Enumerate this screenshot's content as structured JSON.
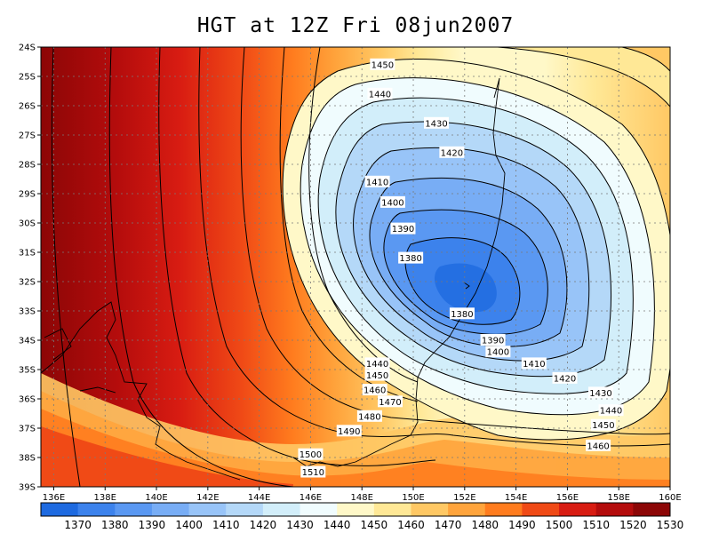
{
  "title": "HGT at 12Z Fri 08jun2007",
  "map": {
    "lon_range": [
      135.5,
      160
    ],
    "lat_range": [
      -39,
      -24
    ],
    "lon_ticks": [
      "136E",
      "138E",
      "140E",
      "142E",
      "144E",
      "146E",
      "148E",
      "150E",
      "152E",
      "154E",
      "156E",
      "158E",
      "160E"
    ],
    "lat_ticks": [
      "24S",
      "25S",
      "26S",
      "27S",
      "28S",
      "29S",
      "30S",
      "31S",
      "32S",
      "33S",
      "34S",
      "35S",
      "36S",
      "37S",
      "38S",
      "39S"
    ],
    "contour_labels": [
      {
        "text": "1450",
        "lon": 148.8,
        "lat": -24.6
      },
      {
        "text": "1440",
        "lon": 148.7,
        "lat": -25.6
      },
      {
        "text": "1430",
        "lon": 150.9,
        "lat": -26.6
      },
      {
        "text": "1420",
        "lon": 151.5,
        "lat": -27.6
      },
      {
        "text": "1410",
        "lon": 148.6,
        "lat": -28.6
      },
      {
        "text": "1400",
        "lon": 149.2,
        "lat": -29.3
      },
      {
        "text": "1390",
        "lon": 149.6,
        "lat": -30.2
      },
      {
        "text": "1380",
        "lon": 149.9,
        "lat": -31.2
      },
      {
        "text": "1380",
        "lon": 151.9,
        "lat": -33.1
      },
      {
        "text": "1390",
        "lon": 153.1,
        "lat": -34.0
      },
      {
        "text": "1400",
        "lon": 153.3,
        "lat": -34.4
      },
      {
        "text": "1410",
        "lon": 154.7,
        "lat": -34.8
      },
      {
        "text": "1420",
        "lon": 155.9,
        "lat": -35.3
      },
      {
        "text": "1430",
        "lon": 157.3,
        "lat": -35.8
      },
      {
        "text": "1440",
        "lon": 157.7,
        "lat": -36.4
      },
      {
        "text": "1450",
        "lon": 157.4,
        "lat": -36.9
      },
      {
        "text": "1460",
        "lon": 157.2,
        "lat": -37.6
      },
      {
        "text": "1440",
        "lon": 148.6,
        "lat": -34.8
      },
      {
        "text": "1450",
        "lon": 148.6,
        "lat": -35.2
      },
      {
        "text": "1460",
        "lon": 148.5,
        "lat": -35.7
      },
      {
        "text": "1470",
        "lon": 149.1,
        "lat": -36.1
      },
      {
        "text": "1480",
        "lon": 148.3,
        "lat": -36.6
      },
      {
        "text": "1490",
        "lon": 147.5,
        "lat": -37.1
      },
      {
        "text": "1500",
        "lon": 146.0,
        "lat": -37.9
      },
      {
        "text": "1510",
        "lon": 146.1,
        "lat": -38.5
      }
    ]
  },
  "colorbar": {
    "labels": [
      "1370",
      "1380",
      "1390",
      "1400",
      "1410",
      "1420",
      "1430",
      "1440",
      "1450",
      "1460",
      "1470",
      "1480",
      "1490",
      "1500",
      "1510",
      "1520",
      "1530"
    ],
    "colors": [
      "#1e6ae0",
      "#3c82ec",
      "#5a98f2",
      "#78adf5",
      "#98c4f8",
      "#b4d8f8",
      "#d2eefa",
      "#f0fcfe",
      "#fff8c8",
      "#ffe896",
      "#ffc864",
      "#ffa43c",
      "#ff7c1e",
      "#f04a16",
      "#d81c12",
      "#b40c0c",
      "#8c0606"
    ]
  }
}
